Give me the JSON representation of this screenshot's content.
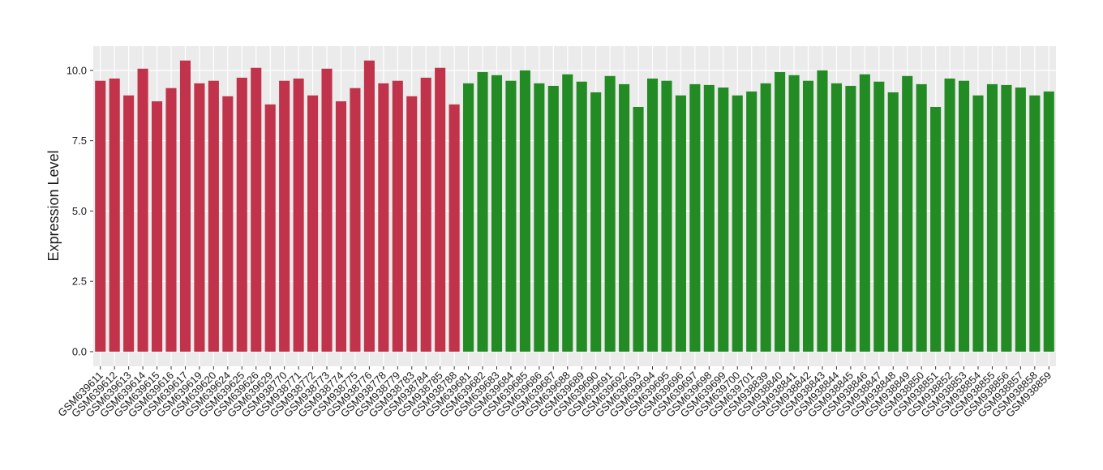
{
  "chart_data": {
    "type": "bar",
    "y_label": "Expression Level",
    "ylim": [
      -0.52,
      10.86
    ],
    "yticks": [
      {
        "value": 0,
        "label": "0.0"
      },
      {
        "value": 2.5,
        "label": "2.5"
      },
      {
        "value": 5,
        "label": "5.0"
      },
      {
        "value": 7.5,
        "label": "7.5"
      },
      {
        "value": 10,
        "label": "10.0"
      }
    ],
    "grid": true,
    "series": [
      {
        "color": "#c0334a",
        "categories": [
          "GSM639611",
          "GSM639612",
          "GSM639613",
          "GSM639614",
          "GSM639615",
          "GSM639616",
          "GSM639617",
          "GSM639619",
          "GSM639620",
          "GSM639624",
          "GSM639625",
          "GSM639626",
          "GSM639629",
          "GSM938770",
          "GSM938771",
          "GSM938772",
          "GSM938773",
          "GSM938774",
          "GSM938775",
          "GSM938776",
          "GSM938778",
          "GSM938779",
          "GSM938783",
          "GSM938784",
          "GSM938785",
          "GSM938788"
        ],
        "values": [
          9.63,
          9.71,
          9.11,
          10.06,
          8.9,
          9.37,
          10.35,
          9.54,
          9.63,
          9.08,
          9.74,
          10.09,
          8.79,
          9.63,
          9.71,
          9.11,
          10.06,
          8.9,
          9.37,
          10.35,
          9.54,
          9.63,
          9.08,
          9.74,
          10.09,
          8.79
        ]
      },
      {
        "color": "#238b23",
        "categories": [
          "GSM639681",
          "GSM639682",
          "GSM639683",
          "GSM639684",
          "GSM639685",
          "GSM639686",
          "GSM639687",
          "GSM639688",
          "GSM639689",
          "GSM639690",
          "GSM639691",
          "GSM639692",
          "GSM639693",
          "GSM639694",
          "GSM639695",
          "GSM639696",
          "GSM639697",
          "GSM639698",
          "GSM639699",
          "GSM639700",
          "GSM639701",
          "GSM938839",
          "GSM938840",
          "GSM938841",
          "GSM938842",
          "GSM938843",
          "GSM938844",
          "GSM938845",
          "GSM938846",
          "GSM938847",
          "GSM938848",
          "GSM938849",
          "GSM938850",
          "GSM938851",
          "GSM938852",
          "GSM938853",
          "GSM938854",
          "GSM938855",
          "GSM938856",
          "GSM938857",
          "GSM938858",
          "GSM938859"
        ],
        "values": [
          9.54,
          9.94,
          9.83,
          9.63,
          10.0,
          9.54,
          9.45,
          9.86,
          9.6,
          9.22,
          9.8,
          9.51,
          8.7,
          9.71,
          9.63,
          9.11,
          9.51,
          9.48,
          9.39,
          9.11,
          9.25,
          9.54,
          9.94,
          9.83,
          9.63,
          10.0,
          9.54,
          9.45,
          9.86,
          9.6,
          9.22,
          9.8,
          9.51,
          8.7,
          9.71,
          9.63,
          9.11,
          9.51,
          9.48,
          9.39,
          9.11,
          9.25
        ]
      }
    ]
  }
}
